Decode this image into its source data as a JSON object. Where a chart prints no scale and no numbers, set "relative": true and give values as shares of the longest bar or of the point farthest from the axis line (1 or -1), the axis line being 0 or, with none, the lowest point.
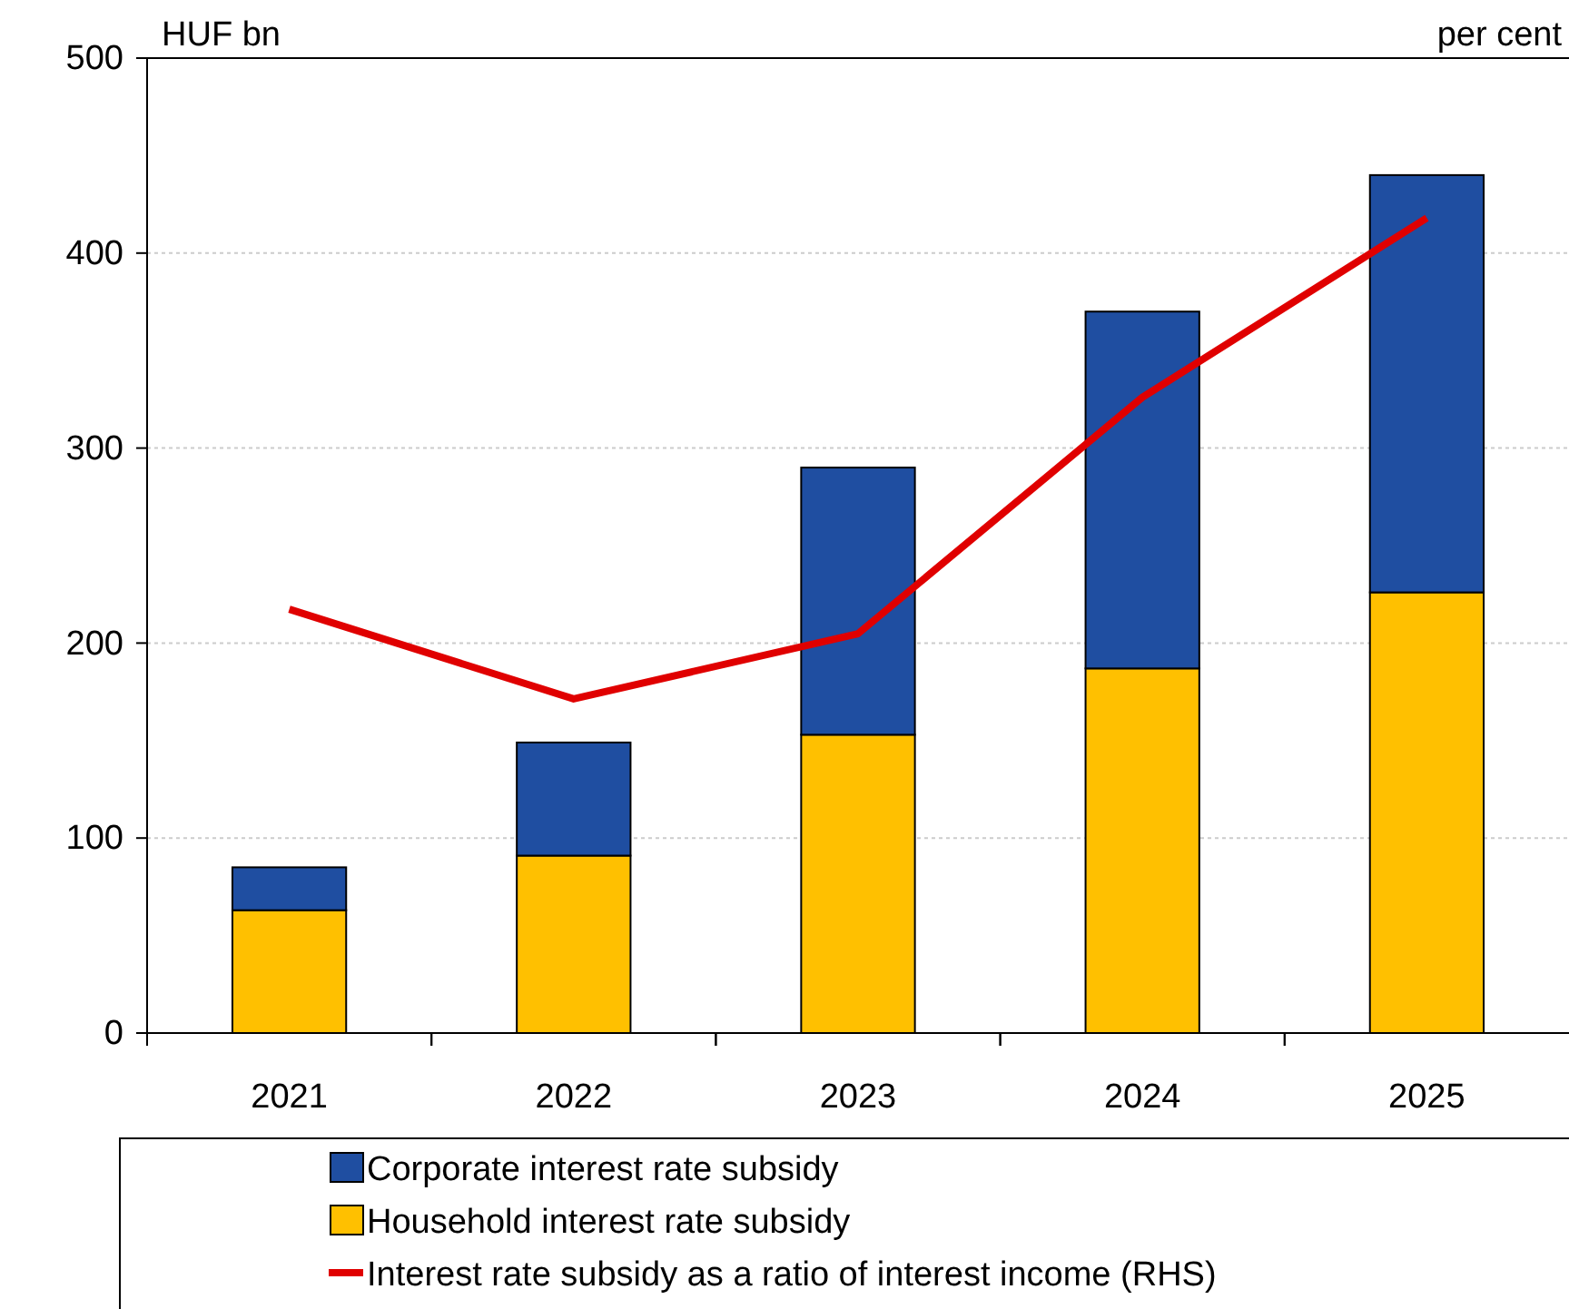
{
  "chart_data": [
    {
      "type": "bar",
      "stacked": true,
      "ylabel": "HUF bn",
      "categories": [
        "2021",
        "2022",
        "2023",
        "2024",
        "2025"
      ],
      "ylim": [
        0,
        500
      ],
      "yticks": [
        0,
        100,
        200,
        300,
        400,
        500
      ],
      "grid": "y",
      "legend": "bottom",
      "series": [
        {
          "name": "Household interest rate subsidy",
          "color": "#ffc000",
          "values": [
            63,
            91,
            153,
            187,
            226
          ]
        },
        {
          "name": "Corporate interest rate subsidy",
          "color": "#1f4ea1",
          "values": [
            22,
            58,
            137,
            183,
            214
          ]
        }
      ]
    },
    {
      "type": "line",
      "relative": true,
      "y2label": "per cent",
      "tick_labels": false,
      "legend": "bottom",
      "categories": [
        "2021",
        "2022",
        "2023",
        "2024",
        "2025"
      ],
      "series": [
        {
          "name": "Interest rate subsidy as a ratio of interest income (RHS)",
          "color": "#e00000",
          "values": [
            0.52,
            0.41,
            0.49,
            0.78,
            1.0
          ]
        }
      ]
    }
  ]
}
